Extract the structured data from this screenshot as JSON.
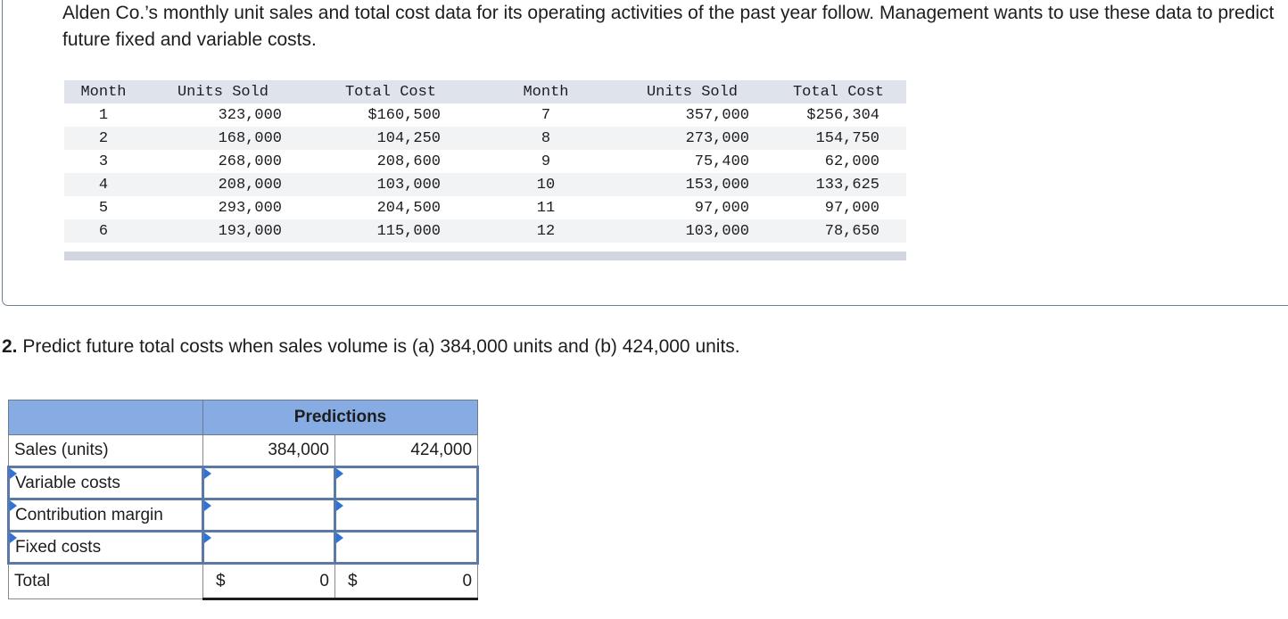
{
  "intro": "Alden Co.’s monthly unit sales and total cost data for its operating activities of the past year follow. Management wants to use these data to predict future fixed and variable costs.",
  "data_table": {
    "headers": [
      "Month",
      "Units Sold",
      "Total Cost",
      "Month",
      "Units Sold",
      "Total Cost"
    ],
    "rows": [
      [
        "1",
        "323,000",
        "$160,500",
        "7",
        "357,000",
        "$256,304"
      ],
      [
        "2",
        "168,000",
        "104,250",
        "8",
        "273,000",
        "154,750"
      ],
      [
        "3",
        "268,000",
        "208,600",
        "9",
        "75,400",
        "62,000"
      ],
      [
        "4",
        "208,000",
        "103,000",
        "10",
        "153,000",
        "133,625"
      ],
      [
        "5",
        "293,000",
        "204,500",
        "11",
        "97,000",
        "97,000"
      ],
      [
        "6",
        "193,000",
        "115,000",
        "12",
        "103,000",
        "78,650"
      ]
    ]
  },
  "question": {
    "number": "2.",
    "text": "Predict future total costs when sales volume is (a) 384,000 units and (b) 424,000 units."
  },
  "predictions": {
    "title": "Predictions",
    "sales_label": "Sales (units)",
    "sales_a": "384,000",
    "sales_b": "424,000",
    "variable_label": "Variable costs",
    "contribution_label": "Contribution margin",
    "fixed_label": "Fixed costs",
    "total_label": "Total",
    "currency": "$",
    "total_a": "0",
    "total_b": "0"
  },
  "colors": {
    "header_fill": "#87ace3",
    "input_border": "#5b79a8",
    "marker": "#2e73d9"
  }
}
